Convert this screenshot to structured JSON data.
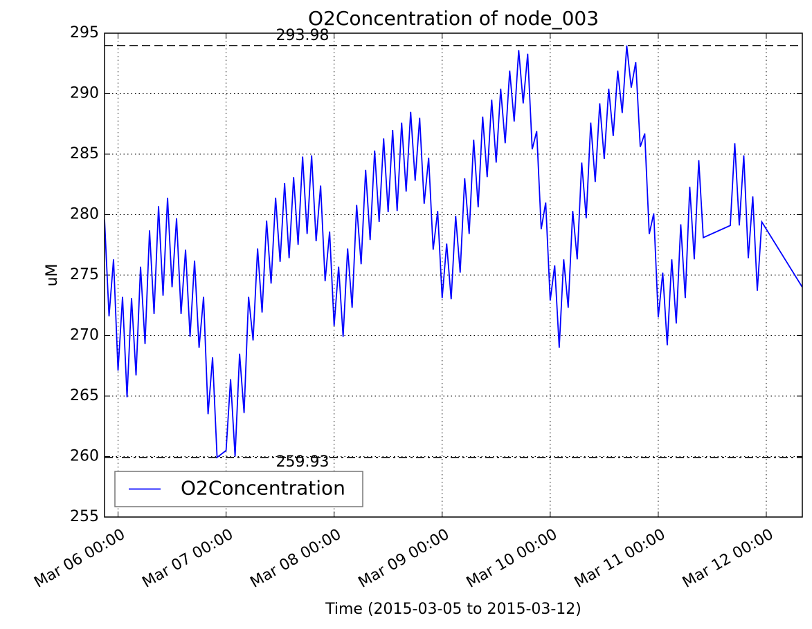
{
  "chart_data": {
    "type": "line",
    "title": "O2Concentration of node_003",
    "xlabel": "Time (2015-03-05 to 2015-03-12)",
    "ylabel": "uM",
    "x": [
      "Mar 05 21:00",
      "Mar 05 22:00",
      "Mar 05 23:00",
      "Mar 06 00:00",
      "Mar 06 01:00",
      "Mar 06 02:00",
      "Mar 06 03:00",
      "Mar 06 04:00",
      "Mar 06 05:00",
      "Mar 06 06:00",
      "Mar 06 07:00",
      "Mar 06 08:00",
      "Mar 06 09:00",
      "Mar 06 10:00",
      "Mar 06 11:00",
      "Mar 06 12:00",
      "Mar 06 13:00",
      "Mar 06 14:00",
      "Mar 06 15:00",
      "Mar 06 16:00",
      "Mar 06 17:00",
      "Mar 06 18:00",
      "Mar 06 19:00",
      "Mar 06 20:00",
      "Mar 06 21:00",
      "Mar 06 22:00",
      "Mar 07 00:00",
      "Mar 07 01:00",
      "Mar 07 02:00",
      "Mar 07 03:00",
      "Mar 07 04:00",
      "Mar 07 05:00",
      "Mar 07 06:00",
      "Mar 07 07:00",
      "Mar 07 08:00",
      "Mar 07 09:00",
      "Mar 07 10:00",
      "Mar 07 11:00",
      "Mar 07 12:00",
      "Mar 07 13:00",
      "Mar 07 14:00",
      "Mar 07 15:00",
      "Mar 07 16:00",
      "Mar 07 17:00",
      "Mar 07 18:00",
      "Mar 07 19:00",
      "Mar 07 20:00",
      "Mar 07 21:00",
      "Mar 07 22:00",
      "Mar 07 23:00",
      "Mar 08 00:00",
      "Mar 08 01:00",
      "Mar 08 02:00",
      "Mar 08 03:00",
      "Mar 08 04:00",
      "Mar 08 05:00",
      "Mar 08 06:00",
      "Mar 08 07:00",
      "Mar 08 08:00",
      "Mar 08 09:00",
      "Mar 08 10:00",
      "Mar 08 11:00",
      "Mar 08 12:00",
      "Mar 08 13:00",
      "Mar 08 14:00",
      "Mar 08 15:00",
      "Mar 08 16:00",
      "Mar 08 17:00",
      "Mar 08 18:00",
      "Mar 08 19:00",
      "Mar 08 20:00",
      "Mar 08 21:00",
      "Mar 08 22:00",
      "Mar 08 23:00",
      "Mar 09 00:00",
      "Mar 09 01:00",
      "Mar 09 02:00",
      "Mar 09 03:00",
      "Mar 09 04:00",
      "Mar 09 05:00",
      "Mar 09 06:00",
      "Mar 09 07:00",
      "Mar 09 08:00",
      "Mar 09 09:00",
      "Mar 09 10:00",
      "Mar 09 11:00",
      "Mar 09 12:00",
      "Mar 09 13:00",
      "Mar 09 14:00",
      "Mar 09 15:00",
      "Mar 09 16:00",
      "Mar 09 17:00",
      "Mar 09 18:00",
      "Mar 09 19:00",
      "Mar 09 20:00",
      "Mar 09 21:00",
      "Mar 09 22:00",
      "Mar 09 23:00",
      "Mar 10 00:00",
      "Mar 10 01:00",
      "Mar 10 02:00",
      "Mar 10 03:00",
      "Mar 10 04:00",
      "Mar 10 05:00",
      "Mar 10 06:00",
      "Mar 10 07:00",
      "Mar 10 08:00",
      "Mar 10 09:00",
      "Mar 10 10:00",
      "Mar 10 11:00",
      "Mar 10 12:00",
      "Mar 10 13:00",
      "Mar 10 14:00",
      "Mar 10 15:00",
      "Mar 10 16:00",
      "Mar 10 17:00",
      "Mar 10 18:00",
      "Mar 10 19:00",
      "Mar 10 20:00",
      "Mar 10 21:00",
      "Mar 10 22:00",
      "Mar 10 23:00",
      "Mar 11 00:00",
      "Mar 11 01:00",
      "Mar 11 02:00",
      "Mar 11 03:00",
      "Mar 11 04:00",
      "Mar 11 05:00",
      "Mar 11 06:00",
      "Mar 11 07:00",
      "Mar 11 08:00",
      "Mar 11 09:00",
      "Mar 11 10:00",
      "Mar 11 16:00",
      "Mar 11 17:00",
      "Mar 11 18:00",
      "Mar 11 19:00",
      "Mar 11 20:00",
      "Mar 11 21:00",
      "Mar 11 22:00",
      "Mar 11 23:00",
      "Mar 12 08:00"
    ],
    "series": [
      {
        "name": "O2Concentration",
        "color": "#0000ff",
        "values": [
          279.6,
          271.6,
          276.3,
          267.1,
          273.2,
          264.9,
          273.1,
          266.7,
          275.7,
          269.3,
          278.7,
          271.8,
          280.7,
          273.3,
          281.4,
          274.0,
          279.7,
          271.8,
          277.1,
          269.9,
          276.2,
          269.0,
          273.2,
          263.5,
          268.2,
          259.93,
          260.5,
          266.4,
          260.0,
          268.5,
          263.6,
          273.2,
          269.6,
          277.2,
          271.9,
          279.5,
          274.3,
          281.4,
          276.1,
          282.6,
          276.4,
          283.1,
          277.5,
          284.8,
          278.4,
          284.9,
          277.8,
          282.4,
          274.5,
          278.6,
          270.8,
          275.7,
          269.9,
          277.2,
          272.3,
          280.8,
          275.9,
          283.7,
          277.9,
          285.3,
          279.4,
          286.3,
          280.2,
          287.0,
          280.3,
          287.6,
          281.9,
          288.5,
          282.8,
          288.0,
          280.9,
          284.7,
          277.1,
          280.3,
          273.1,
          277.6,
          273.0,
          279.9,
          275.2,
          283.0,
          278.4,
          286.2,
          280.6,
          288.1,
          283.1,
          289.5,
          284.3,
          290.4,
          285.9,
          291.9,
          287.7,
          293.6,
          289.2,
          293.3,
          285.4,
          286.9,
          278.8,
          281.0,
          272.9,
          275.8,
          269.0,
          276.3,
          272.3,
          280.3,
          276.3,
          284.3,
          279.7,
          287.6,
          282.7,
          289.2,
          284.6,
          290.4,
          286.5,
          291.9,
          288.4,
          293.98,
          290.5,
          292.6,
          285.6,
          286.7,
          278.4,
          280.1,
          271.5,
          275.2,
          269.2,
          276.3,
          271.0,
          279.2,
          273.1,
          282.3,
          276.3,
          284.5,
          278.1,
          279.1,
          285.9,
          279.1,
          284.9,
          276.4,
          281.5,
          273.7,
          279.4,
          274.0
        ]
      }
    ],
    "reference_lines": [
      {
        "value": 293.98,
        "dash": "dashed"
      },
      {
        "value": 259.93,
        "dash": "dashdot"
      }
    ],
    "xlim": [
      "Mar 05 21:00",
      "Mar 12 08:00"
    ],
    "xticks": [
      "Mar 06 00:00",
      "Mar 07 00:00",
      "Mar 08 00:00",
      "Mar 09 00:00",
      "Mar 10 00:00",
      "Mar 11 00:00",
      "Mar 12 00:00"
    ],
    "ylim": [
      255,
      295
    ],
    "yticks": [
      255,
      260,
      265,
      270,
      275,
      280,
      285,
      290,
      295
    ],
    "grid": true,
    "legend": "lower left"
  }
}
